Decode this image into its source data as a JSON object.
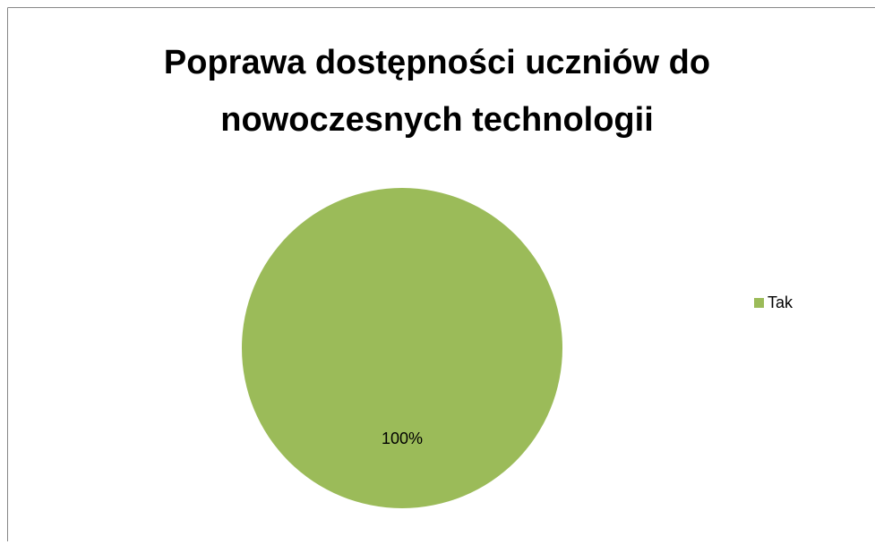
{
  "chart_data": {
    "type": "pie",
    "title": "Poprawa dostępności uczniów do nowoczesnych technologii",
    "categories": [
      "Tak"
    ],
    "values": [
      100
    ],
    "value_labels": [
      "100%"
    ],
    "colors": [
      "#9bbb59"
    ],
    "legend": "right"
  }
}
